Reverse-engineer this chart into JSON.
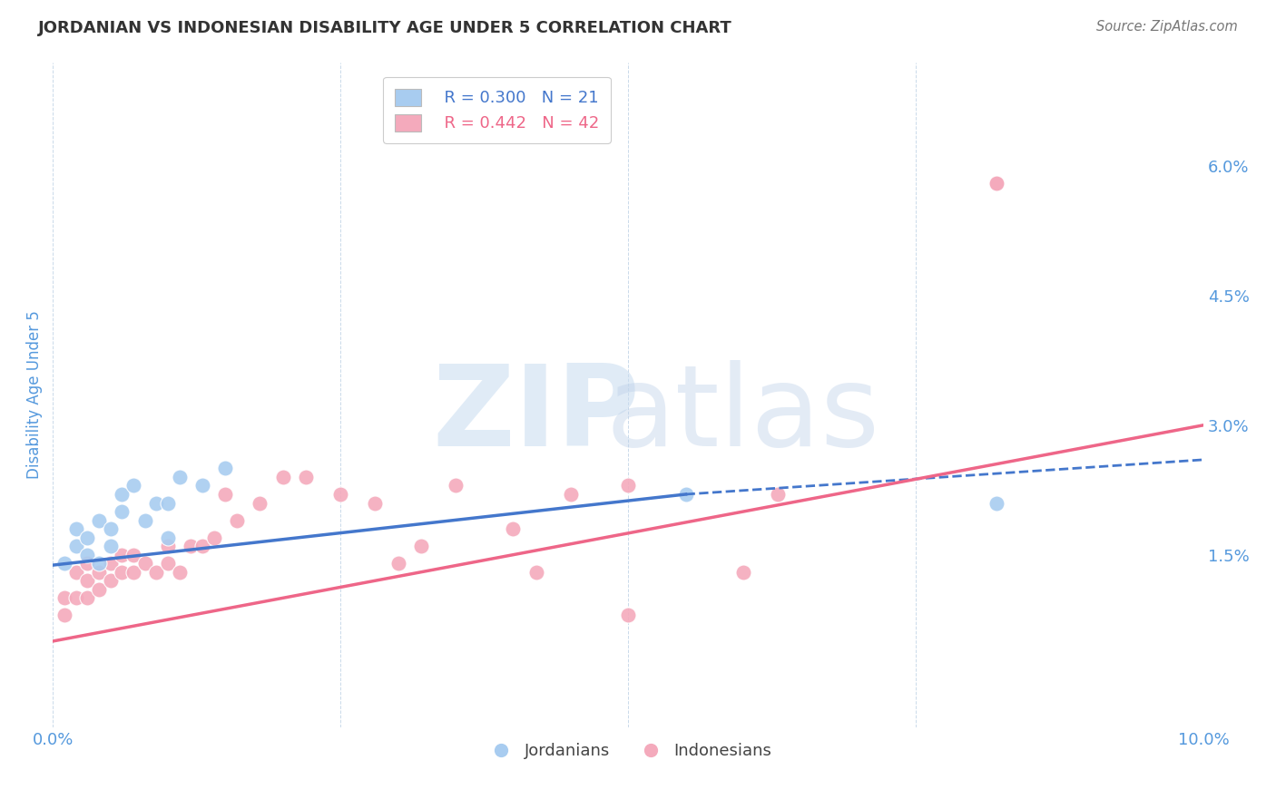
{
  "title": "JORDANIAN VS INDONESIAN DISABILITY AGE UNDER 5 CORRELATION CHART",
  "source": "Source: ZipAtlas.com",
  "ylabel": "Disability Age Under 5",
  "xlim": [
    0.0,
    0.1
  ],
  "ylim": [
    -0.005,
    0.072
  ],
  "ytick_labels_right": [
    "1.5%",
    "3.0%",
    "4.5%",
    "6.0%"
  ],
  "ytick_vals_right": [
    0.015,
    0.03,
    0.045,
    0.06
  ],
  "legend_blue_r": "R = 0.300",
  "legend_blue_n": "N = 21",
  "legend_pink_r": "R = 0.442",
  "legend_pink_n": "N = 42",
  "blue_color": "#A8CCF0",
  "pink_color": "#F4AABC",
  "blue_line_color": "#4477CC",
  "pink_line_color": "#EE6688",
  "background_color": "#FFFFFF",
  "grid_color": "#CADAEA",
  "title_color": "#333333",
  "source_color": "#777777",
  "axis_label_color": "#5599DD",
  "jordanians_x": [
    0.001,
    0.002,
    0.002,
    0.003,
    0.003,
    0.004,
    0.004,
    0.005,
    0.005,
    0.006,
    0.006,
    0.007,
    0.008,
    0.009,
    0.01,
    0.01,
    0.011,
    0.013,
    0.015,
    0.055,
    0.082
  ],
  "jordanians_y": [
    0.014,
    0.016,
    0.018,
    0.015,
    0.017,
    0.014,
    0.019,
    0.016,
    0.018,
    0.02,
    0.022,
    0.023,
    0.019,
    0.021,
    0.021,
    0.017,
    0.024,
    0.023,
    0.025,
    0.022,
    0.021
  ],
  "indonesians_x": [
    0.001,
    0.001,
    0.002,
    0.002,
    0.003,
    0.003,
    0.003,
    0.004,
    0.004,
    0.005,
    0.005,
    0.006,
    0.006,
    0.007,
    0.007,
    0.008,
    0.009,
    0.01,
    0.01,
    0.011,
    0.012,
    0.013,
    0.014,
    0.015,
    0.016,
    0.018,
    0.02,
    0.022,
    0.025,
    0.028,
    0.03,
    0.032,
    0.035,
    0.04,
    0.042,
    0.045,
    0.05,
    0.05,
    0.06,
    0.063,
    0.082,
    0.082
  ],
  "indonesians_y": [
    0.008,
    0.01,
    0.01,
    0.013,
    0.01,
    0.012,
    0.014,
    0.011,
    0.013,
    0.012,
    0.014,
    0.013,
    0.015,
    0.013,
    0.015,
    0.014,
    0.013,
    0.014,
    0.016,
    0.013,
    0.016,
    0.016,
    0.017,
    0.022,
    0.019,
    0.021,
    0.024,
    0.024,
    0.022,
    0.021,
    0.014,
    0.016,
    0.023,
    0.018,
    0.013,
    0.022,
    0.008,
    0.023,
    0.013,
    0.022,
    0.058,
    0.058
  ],
  "blue_line_start_x": 0.0,
  "blue_line_start_y": 0.0138,
  "blue_line_solid_end_x": 0.055,
  "blue_line_solid_end_y": 0.022,
  "blue_line_dash_end_x": 0.1,
  "blue_line_dash_end_y": 0.026,
  "pink_line_start_x": 0.0,
  "pink_line_start_y": 0.005,
  "pink_line_end_x": 0.1,
  "pink_line_end_y": 0.03
}
